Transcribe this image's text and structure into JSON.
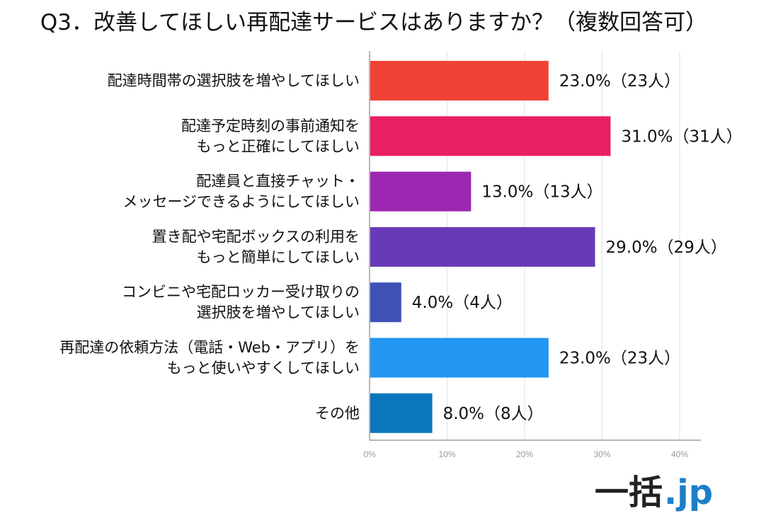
{
  "chart_data": {
    "type": "bar",
    "orientation": "horizontal",
    "title": "Q3．改善してほしい再配達サービスはありますか？（複数回答可）",
    "categories": [
      [
        "配達時間帯の選択肢を増やしてほしい"
      ],
      [
        "配達予定時刻の事前通知を",
        "もっと正確にしてほしい"
      ],
      [
        "配達員と直接チャット・",
        "メッセージできるようにしてほしい"
      ],
      [
        "置き配や宅配ボックスの利用を",
        "もっと簡単にしてほしい"
      ],
      [
        "コンビニや宅配ロッカー受け取りの",
        "選択肢を増やしてほしい"
      ],
      [
        "再配達の依頼方法（電話・Web・アプリ）を",
        "もっと使いやすくしてほしい"
      ],
      [
        "その他"
      ]
    ],
    "values": [
      23.0,
      31.0,
      13.0,
      29.0,
      4.0,
      23.0,
      8.0
    ],
    "counts": [
      23,
      31,
      13,
      29,
      4,
      23,
      8
    ],
    "data_labels": [
      "23.0%（23人）",
      "31.0%（31人）",
      "13.0%（13人）",
      "29.0%（29人）",
      "4.0%（4人）",
      "23.0%（23人）",
      "8.0%（8人）"
    ],
    "bar_colors": [
      "#f04335",
      "#e91e63",
      "#9c27b0",
      "#673ab7",
      "#3f51b5",
      "#2196f3",
      "#0a77bd"
    ],
    "xlim": [
      0,
      40
    ],
    "ticks": [
      0,
      10,
      20,
      30,
      40
    ],
    "tick_labels": [
      "0%",
      "10%",
      "20%",
      "30%",
      "40%"
    ],
    "grid": true,
    "legend": "none"
  },
  "branding": {
    "logo_main": "一括",
    "logo_suffix": ".jp"
  },
  "colors": {
    "axis": "#9e9e9e",
    "grid": "#e2e2e2",
    "logo_accent": "#1d7fc9"
  }
}
